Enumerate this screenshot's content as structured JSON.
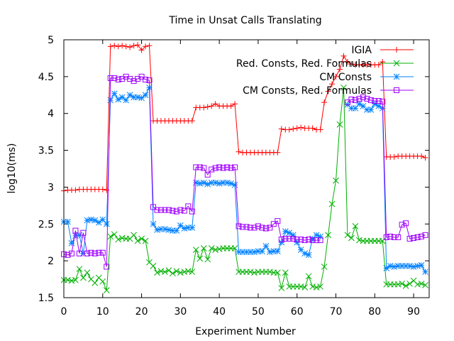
{
  "chart_data": {
    "type": "line",
    "title": "Time in Unsat Calls Translating",
    "xlabel": "Experiment Number",
    "ylabel": "log10(ms)",
    "xlim": [
      0,
      94
    ],
    "ylim": [
      1.5,
      5
    ],
    "xticks": [
      0,
      10,
      20,
      30,
      40,
      50,
      60,
      70,
      80,
      90
    ],
    "yticks": [
      1.5,
      2,
      2.5,
      3,
      3.5,
      4,
      4.5,
      5
    ],
    "xtick_labels": [
      "0",
      "10",
      "20",
      "30",
      "40",
      "50",
      "60",
      "70",
      "80",
      "90"
    ],
    "ytick_labels": [
      "1.5",
      "2",
      "2.5",
      "3",
      "3.5",
      "4",
      "4.5",
      "5"
    ],
    "grid": false,
    "legend_position": "top-right",
    "series": [
      {
        "name": "IGIA",
        "color": "#ff0000",
        "marker": "plus",
        "x": [
          0,
          1,
          2,
          3,
          4,
          5,
          6,
          7,
          8,
          9,
          10,
          11,
          12,
          13,
          14,
          15,
          16,
          17,
          18,
          19,
          20,
          21,
          22,
          23,
          24,
          25,
          26,
          27,
          28,
          29,
          30,
          31,
          32,
          33,
          34,
          35,
          36,
          37,
          38,
          39,
          40,
          41,
          42,
          43,
          44,
          45,
          46,
          47,
          48,
          49,
          50,
          51,
          52,
          53,
          54,
          55,
          56,
          57,
          58,
          59,
          60,
          61,
          62,
          63,
          64,
          65,
          66,
          67,
          68,
          69,
          70,
          71,
          72,
          73,
          74,
          75,
          76,
          77,
          78,
          79,
          80,
          81,
          82,
          83,
          84,
          85,
          86,
          87,
          88,
          89,
          90,
          91,
          92,
          93
        ],
        "values": [
          2.95,
          2.96,
          2.96,
          2.96,
          2.97,
          2.97,
          2.97,
          2.97,
          2.97,
          2.97,
          2.97,
          2.96,
          4.91,
          4.92,
          4.91,
          4.92,
          4.91,
          4.9,
          4.92,
          4.93,
          4.86,
          4.91,
          4.92,
          3.9,
          3.9,
          3.9,
          3.9,
          3.9,
          3.9,
          3.9,
          3.9,
          3.9,
          3.9,
          3.9,
          4.08,
          4.08,
          4.08,
          4.09,
          4.1,
          4.13,
          4.1,
          4.1,
          4.1,
          4.1,
          4.13,
          3.48,
          3.47,
          3.47,
          3.47,
          3.47,
          3.47,
          3.47,
          3.47,
          3.47,
          3.47,
          3.47,
          3.79,
          3.78,
          3.78,
          3.79,
          3.8,
          3.81,
          3.8,
          3.8,
          3.8,
          3.78,
          3.78,
          4.15,
          4.3,
          4.4,
          4.5,
          4.6,
          4.78,
          4.7,
          4.67,
          4.66,
          4.66,
          4.66,
          4.66,
          4.66,
          4.66,
          4.66,
          4.7,
          3.41,
          3.41,
          3.41,
          3.42,
          3.42,
          3.42,
          3.42,
          3.42,
          3.42,
          3.42,
          3.4
        ]
      },
      {
        "name": "Red. Consts, Red. Formulas",
        "color": "#00b000",
        "marker": "x",
        "x": [
          0,
          1,
          2,
          3,
          4,
          5,
          6,
          7,
          8,
          9,
          10,
          11,
          12,
          13,
          14,
          15,
          16,
          17,
          18,
          19,
          20,
          21,
          22,
          23,
          24,
          25,
          26,
          27,
          28,
          29,
          30,
          31,
          32,
          33,
          34,
          35,
          36,
          37,
          38,
          39,
          40,
          41,
          42,
          43,
          44,
          45,
          46,
          47,
          48,
          49,
          50,
          51,
          52,
          53,
          54,
          55,
          56,
          57,
          58,
          59,
          60,
          61,
          62,
          63,
          64,
          65,
          66,
          67,
          68,
          69,
          70,
          71,
          72,
          73,
          74,
          75,
          76,
          77,
          78,
          79,
          80,
          81,
          82,
          83,
          84,
          85,
          86,
          87,
          88,
          89,
          90,
          91,
          92,
          93
        ],
        "values": [
          1.74,
          1.74,
          1.73,
          1.74,
          1.89,
          1.77,
          1.84,
          1.75,
          1.7,
          1.77,
          1.72,
          1.6,
          2.33,
          2.36,
          2.29,
          2.31,
          2.3,
          2.3,
          2.35,
          2.27,
          2.3,
          2.27,
          1.98,
          1.93,
          1.84,
          1.86,
          1.85,
          1.87,
          1.83,
          1.86,
          1.84,
          1.85,
          1.86,
          1.85,
          2.15,
          2.03,
          2.17,
          2.02,
          2.17,
          2.15,
          2.16,
          2.17,
          2.17,
          2.17,
          2.17,
          1.85,
          1.85,
          1.85,
          1.85,
          1.84,
          1.85,
          1.85,
          1.85,
          1.85,
          1.84,
          1.84,
          1.63,
          1.84,
          1.65,
          1.65,
          1.65,
          1.65,
          1.64,
          1.79,
          1.65,
          1.64,
          1.65,
          1.92,
          2.35,
          2.77,
          3.09,
          3.85,
          4.35,
          2.35,
          2.31,
          2.47,
          2.28,
          2.27,
          2.27,
          2.27,
          2.27,
          2.27,
          2.27,
          1.68,
          1.68,
          1.68,
          1.68,
          1.69,
          1.66,
          1.69,
          1.73,
          1.68,
          1.69,
          1.67
        ]
      },
      {
        "name": "CM Consts",
        "color": "#0080ff",
        "marker": "star",
        "x": [
          0,
          1,
          2,
          3,
          4,
          5,
          6,
          7,
          8,
          9,
          10,
          11,
          12,
          13,
          14,
          15,
          16,
          17,
          18,
          19,
          20,
          21,
          22,
          23,
          24,
          25,
          26,
          27,
          28,
          29,
          30,
          31,
          32,
          33,
          34,
          35,
          36,
          37,
          38,
          39,
          40,
          41,
          42,
          43,
          44,
          45,
          46,
          47,
          48,
          49,
          50,
          51,
          52,
          53,
          54,
          55,
          56,
          57,
          58,
          59,
          60,
          61,
          62,
          63,
          64,
          65,
          66,
          67,
          68,
          69,
          70,
          71,
          72,
          73,
          74,
          75,
          76,
          77,
          78,
          79,
          80,
          81,
          82,
          83,
          84,
          85,
          86,
          87,
          88,
          89,
          90,
          91,
          92,
          93
        ],
        "values": [
          2.53,
          2.53,
          2.24,
          2.34,
          2.35,
          2.1,
          2.55,
          2.56,
          2.55,
          2.52,
          2.56,
          2.5,
          4.18,
          4.27,
          4.19,
          4.22,
          4.18,
          4.25,
          4.22,
          4.22,
          4.21,
          4.25,
          4.35,
          2.5,
          2.42,
          2.43,
          2.43,
          2.42,
          2.41,
          2.41,
          2.48,
          2.44,
          2.45,
          2.45,
          3.06,
          3.05,
          3.06,
          3.04,
          3.06,
          3.06,
          3.05,
          3.06,
          3.06,
          3.05,
          3.03,
          2.12,
          2.12,
          2.12,
          2.12,
          2.12,
          2.13,
          2.13,
          2.2,
          2.12,
          2.13,
          2.13,
          2.25,
          2.4,
          2.38,
          2.35,
          2.25,
          2.15,
          2.1,
          2.08,
          2.3,
          2.35,
          2.33,
          null,
          null,
          null,
          null,
          null,
          null,
          4.12,
          4.07,
          4.07,
          4.13,
          4.1,
          4.05,
          4.05,
          4.13,
          4.1,
          4.07,
          1.9,
          1.93,
          1.92,
          1.93,
          1.93,
          1.93,
          1.93,
          1.92,
          1.93,
          1.94,
          1.85
        ]
      },
      {
        "name": "CM Consts, Red. Formulas",
        "color": "#a000ff",
        "marker": "square",
        "x": [
          0,
          1,
          2,
          3,
          4,
          5,
          6,
          7,
          8,
          9,
          10,
          11,
          12,
          13,
          14,
          15,
          16,
          17,
          18,
          19,
          20,
          21,
          22,
          23,
          24,
          25,
          26,
          27,
          28,
          29,
          30,
          31,
          32,
          33,
          34,
          35,
          36,
          37,
          38,
          39,
          40,
          41,
          42,
          43,
          44,
          45,
          46,
          47,
          48,
          49,
          50,
          51,
          52,
          53,
          54,
          55,
          56,
          57,
          58,
          59,
          60,
          61,
          62,
          63,
          64,
          65,
          66,
          67,
          68,
          69,
          70,
          71,
          72,
          73,
          74,
          75,
          76,
          77,
          78,
          79,
          80,
          81,
          82,
          83,
          84,
          85,
          86,
          87,
          88,
          89,
          90,
          91,
          92,
          93
        ],
        "values": [
          2.09,
          2.08,
          2.1,
          2.41,
          2.1,
          2.38,
          2.1,
          2.11,
          2.1,
          2.11,
          2.11,
          1.92,
          4.48,
          4.48,
          4.46,
          4.47,
          4.5,
          4.47,
          4.44,
          4.47,
          4.5,
          4.46,
          4.45,
          2.73,
          2.69,
          2.69,
          2.69,
          2.69,
          2.68,
          2.67,
          2.69,
          2.68,
          2.74,
          2.67,
          3.27,
          3.27,
          3.26,
          3.17,
          3.24,
          3.26,
          3.27,
          3.26,
          3.27,
          3.26,
          3.27,
          2.47,
          2.46,
          2.46,
          2.45,
          2.45,
          2.47,
          2.45,
          2.44,
          2.45,
          2.5,
          2.54,
          2.29,
          2.3,
          2.3,
          2.3,
          2.29,
          2.29,
          2.28,
          2.29,
          2.28,
          2.28,
          2.28,
          null,
          null,
          null,
          null,
          null,
          null,
          4.15,
          4.19,
          4.18,
          4.2,
          4.22,
          4.2,
          4.18,
          4.17,
          4.17,
          4.16,
          2.32,
          2.33,
          2.32,
          2.32,
          2.49,
          2.51,
          2.3,
          2.31,
          2.32,
          2.33,
          2.35
        ]
      }
    ]
  }
}
